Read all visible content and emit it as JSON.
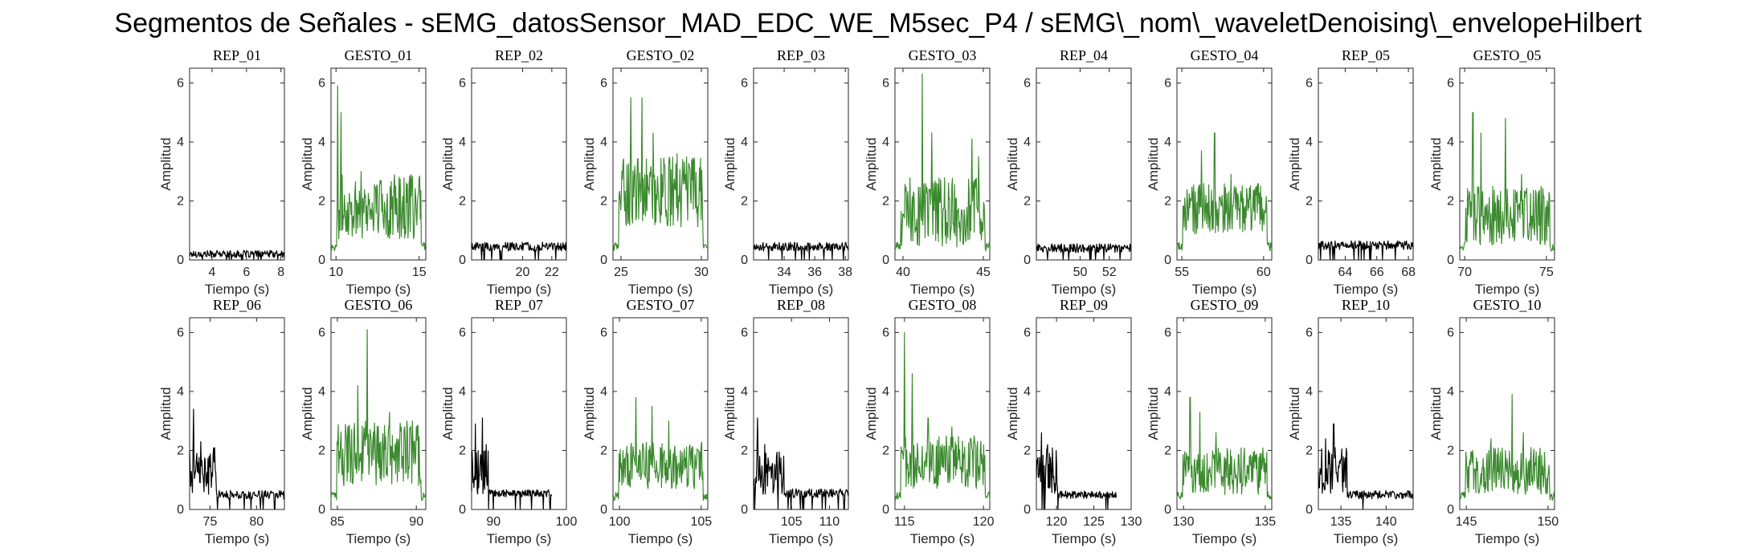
{
  "figure": {
    "title": "Segmentos de Señales - sEMG_datosSensor_MAD_EDC_WE_M5sec_P4 / sEMG\\_nom\\_waveletDenoising\\_envelopeHilbert"
  },
  "colors": {
    "rep": "#000000",
    "gesto": "#3b8a2e",
    "axes": "#262626"
  },
  "chart_data": [
    {
      "type": "line",
      "title": "REP_01",
      "xlabel": "Tiempo (s)",
      "ylabel": "Amplitud",
      "xlim": [
        2.7,
        8.2
      ],
      "ylim": [
        0,
        6.5
      ],
      "xticks": [
        4,
        6,
        8
      ],
      "yticks": [
        0,
        2,
        4,
        6
      ],
      "series": [
        {
          "name": "",
          "kind": "rep",
          "x": [
            2.7,
            8.2
          ],
          "baseline": 0.2,
          "noise": 0.12,
          "peaks": []
        }
      ]
    },
    {
      "type": "line",
      "title": "GESTO_01",
      "xlabel": "Tiempo (s)",
      "ylabel": "Amplitud",
      "xlim": [
        9.7,
        15.4
      ],
      "ylim": [
        0,
        6.5
      ],
      "xticks": [
        10,
        15
      ],
      "yticks": [
        0,
        2,
        4,
        6
      ],
      "series": [
        {
          "name": "",
          "kind": "gesto",
          "x": [
            9.7,
            15.4
          ],
          "baseline": 1.8,
          "noise": 1.1,
          "peaks": [
            [
              10.1,
              5.9
            ],
            [
              10.3,
              5.0
            ],
            [
              11.5,
              3.0
            ],
            [
              13.5,
              2.6
            ]
          ]
        }
      ]
    },
    {
      "type": "line",
      "title": "REP_02",
      "xlabel": "Tiempo (s)",
      "ylabel": "Amplitud",
      "xlim": [
        16.5,
        23.0
      ],
      "ylim": [
        0,
        6.5
      ],
      "xticks": [
        20,
        22
      ],
      "yticks": [
        0,
        2,
        4,
        6
      ],
      "series": [
        {
          "name": "",
          "kind": "rep",
          "x": [
            16.5,
            23.0
          ],
          "baseline": 0.45,
          "noise": 0.15,
          "peaks": []
        }
      ]
    },
    {
      "type": "line",
      "title": "GESTO_02",
      "xlabel": "Tiempo (s)",
      "ylabel": "Amplitud",
      "xlim": [
        24.5,
        30.4
      ],
      "ylim": [
        0,
        6.5
      ],
      "xticks": [
        25,
        30
      ],
      "yticks": [
        0,
        2,
        4,
        6
      ],
      "series": [
        {
          "name": "",
          "kind": "gesto",
          "x": [
            24.5,
            30.4
          ],
          "baseline": 2.3,
          "noise": 1.2,
          "peaks": [
            [
              25.6,
              5.5
            ],
            [
              26.3,
              5.5
            ],
            [
              27.0,
              4.3
            ],
            [
              28.5,
              3.6
            ]
          ]
        }
      ]
    },
    {
      "type": "line",
      "title": "REP_03",
      "xlabel": "Tiempo (s)",
      "ylabel": "Amplitud",
      "xlim": [
        32.0,
        38.2
      ],
      "ylim": [
        0,
        6.5
      ],
      "xticks": [
        34,
        36,
        38
      ],
      "yticks": [
        0,
        2,
        4,
        6
      ],
      "series": [
        {
          "name": "",
          "kind": "rep",
          "x": [
            32.0,
            38.2
          ],
          "baseline": 0.45,
          "noise": 0.15,
          "peaks": []
        }
      ]
    },
    {
      "type": "line",
      "title": "GESTO_03",
      "xlabel": "Tiempo (s)",
      "ylabel": "Amplitud",
      "xlim": [
        39.5,
        45.4
      ],
      "ylim": [
        0,
        6.5
      ],
      "xticks": [
        40,
        45
      ],
      "yticks": [
        0,
        2,
        4,
        6
      ],
      "series": [
        {
          "name": "",
          "kind": "gesto",
          "x": [
            39.5,
            45.4
          ],
          "baseline": 1.6,
          "noise": 1.2,
          "peaks": [
            [
              41.2,
              6.3
            ],
            [
              41.8,
              4.3
            ],
            [
              44.3,
              4.1
            ],
            [
              44.7,
              3.5
            ]
          ]
        }
      ]
    },
    {
      "type": "line",
      "title": "REP_04",
      "xlabel": "Tiempo (s)",
      "ylabel": "Amplitud",
      "xlim": [
        47.0,
        53.5
      ],
      "ylim": [
        0,
        6.5
      ],
      "xticks": [
        50,
        52
      ],
      "yticks": [
        0,
        2,
        4,
        6
      ],
      "series": [
        {
          "name": "",
          "kind": "rep",
          "x": [
            47.0,
            53.5
          ],
          "baseline": 0.4,
          "noise": 0.15,
          "peaks": []
        }
      ]
    },
    {
      "type": "line",
      "title": "GESTO_04",
      "xlabel": "Tiempo (s)",
      "ylabel": "Amplitud",
      "xlim": [
        54.7,
        60.5
      ],
      "ylim": [
        0,
        6.5
      ],
      "xticks": [
        55,
        60
      ],
      "yticks": [
        0,
        2,
        4,
        6
      ],
      "series": [
        {
          "name": "",
          "kind": "gesto",
          "x": [
            54.7,
            60.5
          ],
          "baseline": 1.7,
          "noise": 0.9,
          "peaks": [
            [
              56.2,
              3.7
            ],
            [
              57.0,
              4.3
            ],
            [
              58.0,
              2.9
            ]
          ]
        }
      ]
    },
    {
      "type": "line",
      "title": "REP_05",
      "xlabel": "Tiempo (s)",
      "ylabel": "Amplitud",
      "xlim": [
        62.3,
        68.3
      ],
      "ylim": [
        0,
        6.5
      ],
      "xticks": [
        64,
        66,
        68
      ],
      "yticks": [
        0,
        2,
        4,
        6
      ],
      "series": [
        {
          "name": "",
          "kind": "rep",
          "x": [
            62.3,
            68.3
          ],
          "baseline": 0.5,
          "noise": 0.15,
          "peaks": []
        }
      ]
    },
    {
      "type": "line",
      "title": "GESTO_05",
      "xlabel": "Tiempo (s)",
      "ylabel": "Amplitud",
      "xlim": [
        69.7,
        75.5
      ],
      "ylim": [
        0,
        6.5
      ],
      "xticks": [
        70,
        75
      ],
      "yticks": [
        0,
        2,
        4,
        6
      ],
      "series": [
        {
          "name": "",
          "kind": "gesto",
          "x": [
            69.7,
            75.5
          ],
          "baseline": 1.5,
          "noise": 1.0,
          "peaks": [
            [
              70.5,
              5.0
            ],
            [
              71.0,
              4.3
            ],
            [
              72.5,
              4.8
            ],
            [
              73.5,
              2.9
            ]
          ]
        }
      ]
    },
    {
      "type": "line",
      "title": "REP_06",
      "xlabel": "Tiempo (s)",
      "ylabel": "Amplitud",
      "xlim": [
        72.8,
        83.0
      ],
      "ylim": [
        0,
        6.5
      ],
      "xticks": [
        75,
        80
      ],
      "yticks": [
        0,
        2,
        4,
        6
      ],
      "series": [
        {
          "name": "",
          "kind": "rep",
          "x": [
            72.8,
            83.0
          ],
          "baseline": 0.5,
          "noise": 0.15,
          "peaks": [
            [
              73.2,
              3.4
            ],
            [
              74.0,
              2.3
            ],
            [
              75.5,
              2.1
            ]
          ],
          "active": [
            72.8,
            75.7
          ]
        }
      ]
    },
    {
      "type": "line",
      "title": "GESTO_06",
      "xlabel": "Tiempo (s)",
      "ylabel": "Amplitud",
      "xlim": [
        84.6,
        90.6
      ],
      "ylim": [
        0,
        6.5
      ],
      "xticks": [
        85,
        90
      ],
      "yticks": [
        0,
        2,
        4,
        6
      ],
      "series": [
        {
          "name": "",
          "kind": "gesto",
          "x": [
            84.6,
            90.6
          ],
          "baseline": 1.9,
          "noise": 1.1,
          "peaks": [
            [
              86.3,
              4.2
            ],
            [
              86.9,
              6.1
            ],
            [
              88.3,
              3.3
            ],
            [
              89.4,
              3.0
            ]
          ]
        }
      ]
    },
    {
      "type": "line",
      "title": "REP_07",
      "xlabel": "Tiempo (s)",
      "ylabel": "Amplitud",
      "xlim": [
        87.0,
        100.0
      ],
      "ylim": [
        0,
        6.5
      ],
      "xticks": [
        90,
        100
      ],
      "yticks": [
        0,
        2,
        4,
        6
      ],
      "series": [
        {
          "name": "",
          "kind": "rep",
          "x": [
            87.0,
            98.0
          ],
          "baseline": 0.55,
          "noise": 0.12,
          "peaks": [
            [
              87.5,
              2.9
            ],
            [
              88.5,
              3.1
            ],
            [
              89.0,
              2.2
            ]
          ],
          "active": [
            87.0,
            89.5
          ]
        }
      ]
    },
    {
      "type": "line",
      "title": "GESTO_07",
      "xlabel": "Tiempo (s)",
      "ylabel": "Amplitud",
      "xlim": [
        99.6,
        105.4
      ],
      "ylim": [
        0,
        6.5
      ],
      "xticks": [
        100,
        105
      ],
      "yticks": [
        0,
        2,
        4,
        6
      ],
      "series": [
        {
          "name": "",
          "kind": "gesto",
          "x": [
            99.6,
            105.4
          ],
          "baseline": 1.5,
          "noise": 0.8,
          "peaks": [
            [
              101.0,
              3.8
            ],
            [
              102.0,
              3.5
            ],
            [
              103.0,
              3.0
            ]
          ]
        }
      ]
    },
    {
      "type": "line",
      "title": "REP_08",
      "xlabel": "Tiempo (s)",
      "ylabel": "Amplitud",
      "xlim": [
        100.0,
        112.5
      ],
      "ylim": [
        0,
        6.5
      ],
      "xticks": [
        105,
        110
      ],
      "yticks": [
        0,
        2,
        4,
        6
      ],
      "series": [
        {
          "name": "",
          "kind": "rep",
          "x": [
            100.0,
            112.5
          ],
          "baseline": 0.55,
          "noise": 0.15,
          "peaks": [
            [
              100.5,
              3.1
            ],
            [
              101.5,
              2.2
            ],
            [
              103.0,
              1.8
            ]
          ],
          "active": [
            100.0,
            104.0
          ]
        }
      ]
    },
    {
      "type": "line",
      "title": "GESTO_08",
      "xlabel": "Tiempo (s)",
      "ylabel": "Amplitud",
      "xlim": [
        114.4,
        120.4
      ],
      "ylim": [
        0,
        6.5
      ],
      "xticks": [
        115,
        120
      ],
      "yticks": [
        0,
        2,
        4,
        6
      ],
      "series": [
        {
          "name": "",
          "kind": "gesto",
          "x": [
            114.4,
            120.4
          ],
          "baseline": 1.6,
          "noise": 0.9,
          "peaks": [
            [
              115.0,
              6.0
            ],
            [
              115.5,
              4.6
            ],
            [
              116.5,
              3.1
            ],
            [
              118.0,
              2.8
            ]
          ]
        }
      ]
    },
    {
      "type": "line",
      "title": "REP_09",
      "xlabel": "Tiempo (s)",
      "ylabel": "Amplitud",
      "xlim": [
        117.3,
        130.0
      ],
      "ylim": [
        0,
        6.5
      ],
      "xticks": [
        120,
        125,
        130
      ],
      "yticks": [
        0,
        2,
        4,
        6
      ],
      "series": [
        {
          "name": "",
          "kind": "rep",
          "x": [
            117.3,
            128.0
          ],
          "baseline": 0.5,
          "noise": 0.13,
          "peaks": [
            [
              118.0,
              2.6
            ],
            [
              118.8,
              2.2
            ],
            [
              119.5,
              1.6
            ]
          ],
          "active": [
            117.3,
            120.2
          ]
        }
      ]
    },
    {
      "type": "line",
      "title": "GESTO_09",
      "xlabel": "Tiempo (s)",
      "ylabel": "Amplitud",
      "xlim": [
        129.6,
        135.4
      ],
      "ylim": [
        0,
        6.5
      ],
      "xticks": [
        130,
        135
      ],
      "yticks": [
        0,
        2,
        4,
        6
      ],
      "series": [
        {
          "name": "",
          "kind": "gesto",
          "x": [
            129.6,
            135.4
          ],
          "baseline": 1.3,
          "noise": 0.8,
          "peaks": [
            [
              130.4,
              3.8
            ],
            [
              131.0,
              3.3
            ],
            [
              132.0,
              2.6
            ]
          ]
        }
      ]
    },
    {
      "type": "line",
      "title": "REP_10",
      "xlabel": "Tiempo (s)",
      "ylabel": "Amplitud",
      "xlim": [
        132.5,
        143.0
      ],
      "ylim": [
        0,
        6.5
      ],
      "xticks": [
        135,
        140
      ],
      "yticks": [
        0,
        2,
        4,
        6
      ],
      "series": [
        {
          "name": "",
          "kind": "rep",
          "x": [
            132.5,
            143.0
          ],
          "baseline": 0.5,
          "noise": 0.14,
          "peaks": [
            [
              133.3,
              2.4
            ],
            [
              134.2,
              2.9
            ],
            [
              135.0,
              1.7
            ]
          ],
          "active": [
            132.5,
            135.7
          ]
        }
      ]
    },
    {
      "type": "line",
      "title": "GESTO_10",
      "xlabel": "Tiempo (s)",
      "ylabel": "Amplitud",
      "xlim": [
        144.6,
        150.4
      ],
      "ylim": [
        0,
        6.5
      ],
      "xticks": [
        145,
        150
      ],
      "yticks": [
        0,
        2,
        4,
        6
      ],
      "series": [
        {
          "name": "",
          "kind": "gesto",
          "x": [
            144.6,
            150.4
          ],
          "baseline": 1.3,
          "noise": 0.8,
          "peaks": [
            [
              147.8,
              3.9
            ],
            [
              146.5,
              2.4
            ],
            [
              148.5,
              2.6
            ]
          ]
        }
      ]
    }
  ]
}
